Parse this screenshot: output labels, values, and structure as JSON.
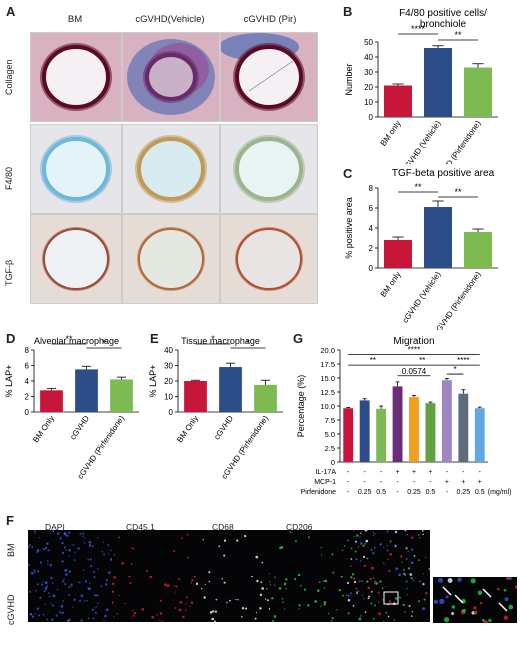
{
  "panel_labels": {
    "A": "A",
    "B": "B",
    "C": "C",
    "D": "D",
    "E": "E",
    "F": "F",
    "G": "G"
  },
  "histology": {
    "columns": [
      "BM",
      "cGVHD(Vehicle)",
      "cGVHD (Pir)"
    ],
    "rows": [
      "Collagen",
      "F4/80",
      "TGF-β"
    ],
    "colors": {
      "collagen_bg": "#d9b2c2",
      "f480_bg": "#e6e6ea",
      "tgf_bg": "#e6dcd6"
    }
  },
  "fluorescence": {
    "columns": [
      "DAPI",
      "CD45.1",
      "CD68",
      "CD206"
    ],
    "rows": [
      "BM",
      "cGVHD"
    ],
    "colors": {
      "dapi": "#3a4fd0",
      "cd45": "#d02020",
      "cd68": "#e8e8e8",
      "cd206": "#20c040"
    }
  },
  "chart_data": [
    {
      "id": "B",
      "type": "bar",
      "title": "F4/80 positive cells/\nbronchiole",
      "ylabel": "Number",
      "ylim": [
        0,
        50
      ],
      "yticks": [
        0,
        10,
        20,
        30,
        40,
        50
      ],
      "categories": [
        "BM only",
        "cGVHD (Vehicle)",
        "cGVHD (Pirfenidone)"
      ],
      "values": [
        21,
        46,
        33
      ],
      "errors": [
        1,
        1.5,
        2.5
      ],
      "colors": [
        "#c8163a",
        "#2c4d87",
        "#7dbb52"
      ],
      "sig": [
        {
          "from": 0,
          "to": 1,
          "text": "****"
        },
        {
          "from": 1,
          "to": 2,
          "text": "**"
        }
      ]
    },
    {
      "id": "C",
      "type": "bar",
      "title": "TGF-beta positive area",
      "ylabel": "% positive area",
      "ylim": [
        0,
        8
      ],
      "yticks": [
        0,
        2,
        4,
        6,
        8
      ],
      "categories": [
        "BM only",
        "cGVHD (Vehicle)",
        "cGVHD (Pirfenidone)"
      ],
      "values": [
        2.8,
        6.1,
        3.6
      ],
      "errors": [
        0.3,
        0.6,
        0.3
      ],
      "colors": [
        "#c8163a",
        "#2c4d87",
        "#7dbb52"
      ],
      "sig": [
        {
          "from": 0,
          "to": 1,
          "text": "**"
        },
        {
          "from": 1,
          "to": 2,
          "text": "**"
        }
      ]
    },
    {
      "id": "D",
      "type": "bar",
      "title": "Alveolar macrophage",
      "ylabel": "% LAP+",
      "ylim": [
        0,
        8
      ],
      "yticks": [
        0,
        2,
        4,
        6,
        8
      ],
      "categories": [
        "BM Only",
        "cGVHD",
        "cGVHD (Pirfenidone)"
      ],
      "values": [
        2.8,
        5.5,
        4.2
      ],
      "errors": [
        0.25,
        0.4,
        0.3
      ],
      "colors": [
        "#c8163a",
        "#2c4d87",
        "#7dbb52"
      ],
      "sig": [
        {
          "from": 0,
          "to": 1,
          "text": "**"
        },
        {
          "from": 1,
          "to": 2,
          "text": "*"
        }
      ]
    },
    {
      "id": "E",
      "type": "bar",
      "title": "Tissue macrophage",
      "ylabel": "% LAP+",
      "ylim": [
        0,
        40
      ],
      "yticks": [
        0,
        10,
        20,
        30,
        40
      ],
      "categories": [
        "BM Only",
        "cGVHD",
        "cGVHD (Pirfenidone)"
      ],
      "values": [
        20,
        29,
        17.5
      ],
      "errors": [
        0.5,
        2.5,
        3
      ],
      "colors": [
        "#c8163a",
        "#2c4d87",
        "#7dbb52"
      ],
      "sig": [
        {
          "from": 0,
          "to": 1,
          "text": "*"
        },
        {
          "from": 1,
          "to": 2,
          "text": "*"
        }
      ]
    },
    {
      "id": "G",
      "type": "bar",
      "title": "Migration",
      "ylabel": "Percentage (%)",
      "ylim": [
        0,
        20
      ],
      "yticks": [
        0,
        2.5,
        5,
        7.5,
        10,
        12.5,
        15,
        17.5,
        20
      ],
      "ytick_labels": [
        "0",
        "2.5",
        "5.0",
        "7.5",
        "10.0",
        "12.5",
        "15.0",
        "17.5",
        "20.0"
      ],
      "values": [
        9.6,
        11,
        9.5,
        13.5,
        11.6,
        10.5,
        14.6,
        12.2,
        9.6
      ],
      "errors": [
        0.15,
        0.3,
        0.5,
        0.8,
        0.3,
        0.2,
        0.3,
        0.7,
        0.2
      ],
      "colors": [
        "#c8163a",
        "#2c4d87",
        "#7dbb52",
        "#6b2c7a",
        "#f0a020",
        "#5fa040",
        "#9f86c0",
        "#5e6d7a",
        "#63a8e0"
      ],
      "conditions": [
        {
          "label": "IL-17A",
          "values": [
            "-",
            "-",
            "-",
            "+",
            "+",
            "+",
            "-",
            "-",
            "-"
          ]
        },
        {
          "label": "MCP-1",
          "values": [
            "-",
            "-",
            "-",
            "-",
            "-",
            "-",
            "+",
            "+",
            "+"
          ]
        },
        {
          "label": "Pirfenidone",
          "values": [
            "-",
            "0.25",
            "0.5",
            "-",
            "0.25",
            "0.5",
            "-",
            "0.25",
            "0.5"
          ],
          "unit": "(mg/ml)"
        }
      ],
      "sig": [
        {
          "from": 0,
          "to": 8,
          "text": "****",
          "level": 19.2
        },
        {
          "from": 0,
          "to": 3,
          "text": "**",
          "level": 17.3
        },
        {
          "from": 3,
          "to": 6,
          "text": "**",
          "level": 17.3
        },
        {
          "from": 3,
          "to": 5,
          "text": "0.0574",
          "level": 15.4
        },
        {
          "from": 6,
          "to": 8,
          "text": "****",
          "level": 17.3
        },
        {
          "from": 6,
          "to": 7,
          "text": "*",
          "level": 15.7
        }
      ]
    }
  ]
}
